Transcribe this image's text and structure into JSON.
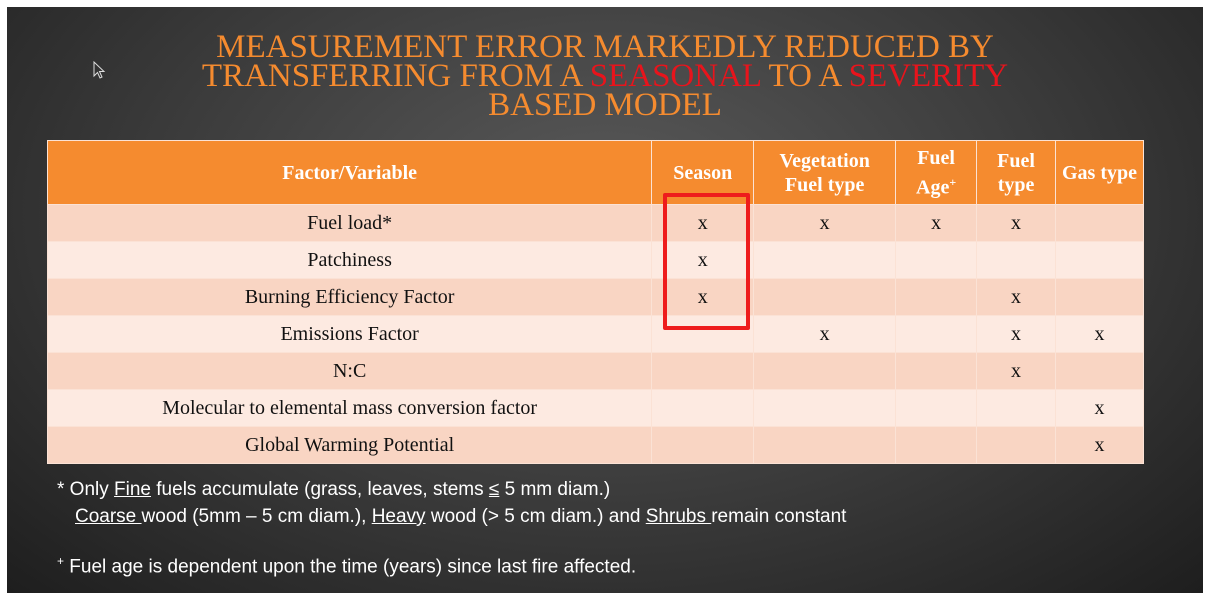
{
  "title": [
    [
      {
        "text": "MEASUREMENT ERROR MARKEDLY REDUCED BY"
      }
    ],
    [
      {
        "text": "TRANSFERRING FROM A "
      },
      {
        "text": "SEASONAL",
        "highlight": true
      },
      {
        "text": " TO A "
      },
      {
        "text": "SEVERITY",
        "highlight": true
      }
    ],
    [
      {
        "text": "BASED MODEL"
      }
    ]
  ],
  "table": {
    "header": [
      {
        "text": "Factor/Variable"
      },
      {
        "text": "Season"
      },
      {
        "text": "Vegetation Fuel type"
      },
      {
        "text": "Fuel Age",
        "sup": "+"
      },
      {
        "text": "Fuel type"
      },
      {
        "text": "Gas type"
      }
    ],
    "rows": [
      [
        "Fuel load*",
        "x",
        "x",
        "x",
        "x",
        null
      ],
      [
        "Patchiness",
        "x",
        null,
        null,
        null,
        null
      ],
      [
        "Burning Efficiency Factor",
        "x",
        null,
        null,
        "x",
        null
      ],
      [
        "Emissions Factor",
        null,
        "x",
        null,
        "x",
        "x"
      ],
      [
        "N:C",
        null,
        null,
        null,
        "x",
        null
      ],
      [
        "Molecular to elemental mass conversion factor",
        null,
        null,
        null,
        null,
        "x"
      ],
      [
        "Global Warming Potential",
        null,
        null,
        null,
        null,
        "x"
      ]
    ]
  },
  "footnotes": [
    [
      {
        "text": "* Only "
      },
      {
        "text": "Fine",
        "underline": true
      },
      {
        "text": " fuels accumulate (grass, leaves, stems "
      },
      {
        "text": "≤",
        "underline": true
      },
      {
        "text": " 5 mm diam.)"
      }
    ],
    [
      {
        "text": "Coarse ",
        "underline": true
      },
      {
        "text": "wood (5mm – 5 cm diam.), "
      },
      {
        "text": "Heavy",
        "underline": true
      },
      {
        "text": " wood (> 5 cm diam.) and "
      },
      {
        "text": "Shrubs ",
        "underline": true
      },
      {
        "text": "remain constant"
      }
    ],
    [
      {
        "text": "+",
        "sup": true
      },
      {
        "text": " Fuel age is dependent upon the time (years) since last fire affected."
      }
    ]
  ]
}
